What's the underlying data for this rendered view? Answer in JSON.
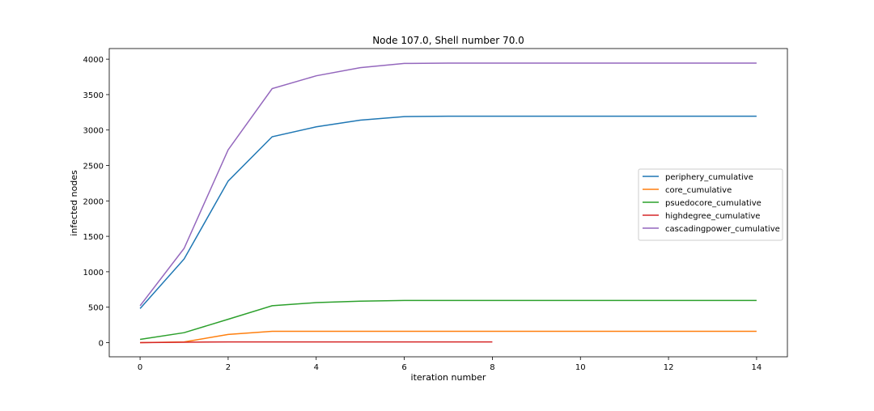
{
  "chart_data": {
    "type": "line",
    "title": "Node 107.0, Shell number 70.0",
    "xlabel": "iteration number",
    "ylabel": "infected nodes",
    "xlim": [
      -0.7,
      14.7
    ],
    "ylim": [
      -200,
      4150
    ],
    "xticks": [
      0,
      2,
      4,
      6,
      8,
      10,
      12,
      14
    ],
    "yticks": [
      0,
      500,
      1000,
      1500,
      2000,
      2500,
      3000,
      3500,
      4000
    ],
    "grid": false,
    "legend_position": "center-right",
    "series": [
      {
        "name": "periphery_cumulative",
        "color": "#1f77b4",
        "x": [
          0,
          1,
          2,
          3,
          4,
          5,
          6,
          7,
          8,
          9,
          10,
          11,
          12,
          13,
          14
        ],
        "y": [
          480,
          1180,
          2280,
          2905,
          3045,
          3140,
          3190,
          3195,
          3195,
          3195,
          3195,
          3195,
          3195,
          3195,
          3195
        ]
      },
      {
        "name": "core_cumulative",
        "color": "#ff7f0e",
        "x": [
          0,
          1,
          2,
          3,
          4,
          5,
          6,
          7,
          8,
          9,
          10,
          11,
          12,
          13,
          14
        ],
        "y": [
          0,
          10,
          115,
          160,
          160,
          160,
          160,
          160,
          160,
          160,
          160,
          160,
          160,
          160,
          160
        ]
      },
      {
        "name": "psuedocore_cumulative",
        "color": "#2ca02c",
        "x": [
          0,
          1,
          2,
          3,
          4,
          5,
          6,
          7,
          8,
          9,
          10,
          11,
          12,
          13,
          14
        ],
        "y": [
          45,
          140,
          330,
          520,
          565,
          585,
          595,
          595,
          595,
          595,
          595,
          595,
          595,
          595,
          595
        ]
      },
      {
        "name": "highdegree_cumulative",
        "color": "#d62728",
        "x": [
          0,
          1,
          2,
          3,
          4,
          5,
          6,
          7,
          8
        ],
        "y": [
          0,
          5,
          10,
          10,
          10,
          10,
          10,
          10,
          10
        ]
      },
      {
        "name": "cascadingpower_cumulative",
        "color": "#9467bd",
        "x": [
          0,
          1,
          2,
          3,
          4,
          5,
          6,
          7,
          8,
          9,
          10,
          11,
          12,
          13,
          14
        ],
        "y": [
          520,
          1330,
          2720,
          3585,
          3765,
          3880,
          3940,
          3945,
          3945,
          3945,
          3945,
          3945,
          3945,
          3945,
          3945
        ]
      }
    ]
  }
}
